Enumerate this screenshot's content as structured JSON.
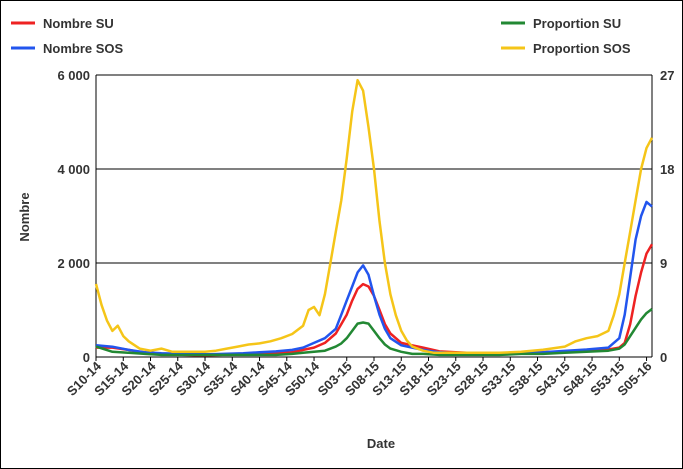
{
  "chart_data": {
    "type": "line",
    "xlabel": "Date",
    "ylabel": "Nombre",
    "ylim": [
      0,
      6000
    ],
    "y2lim": [
      0,
      27
    ],
    "yticks": [
      "0",
      "2 000",
      "4 000",
      "6 000"
    ],
    "yticks_values": [
      0,
      2000,
      4000,
      6000
    ],
    "y2ticks": [
      "0",
      "9",
      "18",
      "27"
    ],
    "y2ticks_values": [
      0,
      9,
      18,
      27
    ],
    "grid": "horizontal",
    "legend_placement": "top",
    "x_categories": [
      "S10-14",
      "S15-14",
      "S20-14",
      "S25-14",
      "S30-14",
      "S35-14",
      "S40-14",
      "S45-14",
      "S50-14",
      "S03-15",
      "S08-15",
      "S13-15",
      "S18-15",
      "S23-15",
      "S28-15",
      "S33-15",
      "S38-15",
      "S43-15",
      "S48-15",
      "S53-15",
      "S05-16"
    ],
    "x_positions": [
      0,
      5,
      10,
      15,
      20,
      25,
      30,
      35,
      40,
      46,
      51,
      56,
      61,
      66,
      71,
      76,
      81,
      86,
      91,
      96,
      101
    ],
    "series": [
      {
        "name": "Nombre SU",
        "axis": "left",
        "color": "#ee2222",
        "x": [
          0,
          3,
          6,
          9,
          12,
          15,
          18,
          21,
          24,
          27,
          30,
          33,
          36,
          38,
          40,
          42,
          44,
          45,
          46,
          47,
          48,
          49,
          50,
          51,
          52,
          53,
          54,
          56,
          58,
          60,
          63,
          66,
          70,
          74,
          78,
          82,
          86,
          90,
          94,
          96,
          97,
          98,
          99,
          100,
          101,
          102
        ],
        "values": [
          200,
          200,
          150,
          80,
          60,
          50,
          40,
          40,
          50,
          60,
          70,
          80,
          100,
          150,
          200,
          300,
          500,
          700,
          900,
          1200,
          1450,
          1550,
          1500,
          1300,
          1000,
          700,
          500,
          300,
          250,
          200,
          120,
          100,
          80,
          80,
          90,
          100,
          120,
          140,
          160,
          200,
          300,
          700,
          1300,
          1800,
          2200,
          2400
        ]
      },
      {
        "name": "Nombre SOS",
        "axis": "left",
        "color": "#2255ee",
        "x": [
          0,
          3,
          6,
          9,
          12,
          15,
          18,
          21,
          24,
          27,
          30,
          33,
          36,
          38,
          40,
          42,
          44,
          45,
          46,
          47,
          48,
          49,
          50,
          51,
          52,
          53,
          54,
          56,
          58,
          60,
          63,
          66,
          70,
          74,
          78,
          82,
          86,
          90,
          94,
          96,
          97,
          98,
          99,
          100,
          101,
          102
        ],
        "values": [
          250,
          220,
          150,
          100,
          80,
          70,
          60,
          60,
          70,
          80,
          100,
          120,
          150,
          200,
          300,
          400,
          600,
          900,
          1200,
          1500,
          1800,
          1950,
          1750,
          1300,
          900,
          600,
          400,
          250,
          200,
          150,
          100,
          80,
          70,
          70,
          80,
          100,
          130,
          160,
          200,
          400,
          900,
          1700,
          2500,
          3000,
          3300,
          3200
        ]
      },
      {
        "name": "Proportion SU",
        "axis": "right",
        "color": "#228833",
        "x": [
          0,
          3,
          6,
          9,
          12,
          15,
          18,
          21,
          24,
          27,
          30,
          33,
          36,
          38,
          40,
          42,
          44,
          45,
          46,
          47,
          48,
          49,
          50,
          51,
          52,
          53,
          54,
          56,
          58,
          60,
          63,
          66,
          70,
          74,
          78,
          82,
          86,
          90,
          94,
          96,
          97,
          98,
          99,
          100,
          101,
          102
        ],
        "values": [
          1.0,
          0.5,
          0.4,
          0.3,
          0.2,
          0.2,
          0.2,
          0.2,
          0.2,
          0.2,
          0.2,
          0.2,
          0.3,
          0.4,
          0.5,
          0.6,
          1.0,
          1.3,
          1.8,
          2.5,
          3.2,
          3.3,
          3.2,
          2.5,
          1.8,
          1.2,
          0.8,
          0.5,
          0.3,
          0.3,
          0.2,
          0.2,
          0.2,
          0.2,
          0.3,
          0.3,
          0.4,
          0.5,
          0.6,
          0.8,
          1.2,
          2.0,
          2.8,
          3.6,
          4.2,
          4.6
        ]
      },
      {
        "name": "Proportion SOS",
        "axis": "right",
        "color": "#f5c518",
        "x": [
          0,
          1,
          2,
          3,
          4,
          5,
          6,
          8,
          10,
          12,
          14,
          16,
          18,
          20,
          22,
          24,
          26,
          28,
          30,
          32,
          34,
          36,
          38,
          39,
          40,
          41,
          42,
          43,
          44,
          45,
          46,
          47,
          48,
          49,
          50,
          51,
          52,
          53,
          54,
          55,
          56,
          57,
          58,
          60,
          62,
          64,
          66,
          70,
          74,
          78,
          82,
          86,
          88,
          90,
          92,
          94,
          95,
          96,
          97,
          98,
          99,
          100,
          101,
          102
        ],
        "values": [
          7.0,
          5.0,
          3.5,
          2.5,
          3.0,
          2.0,
          1.5,
          0.8,
          0.6,
          0.8,
          0.5,
          0.5,
          0.5,
          0.5,
          0.6,
          0.8,
          1.0,
          1.2,
          1.3,
          1.5,
          1.8,
          2.2,
          3.0,
          4.5,
          4.8,
          4.0,
          6.0,
          9.0,
          12.0,
          15.0,
          19.0,
          23.5,
          26.5,
          25.5,
          22.0,
          18.0,
          13.0,
          9.0,
          6.0,
          4.0,
          2.5,
          1.6,
          1.0,
          0.6,
          0.4,
          0.4,
          0.4,
          0.4,
          0.4,
          0.5,
          0.7,
          1.0,
          1.5,
          1.8,
          2.0,
          2.5,
          4.0,
          6.0,
          9.0,
          12.0,
          15.0,
          18.0,
          20.0,
          21.0
        ]
      }
    ]
  }
}
